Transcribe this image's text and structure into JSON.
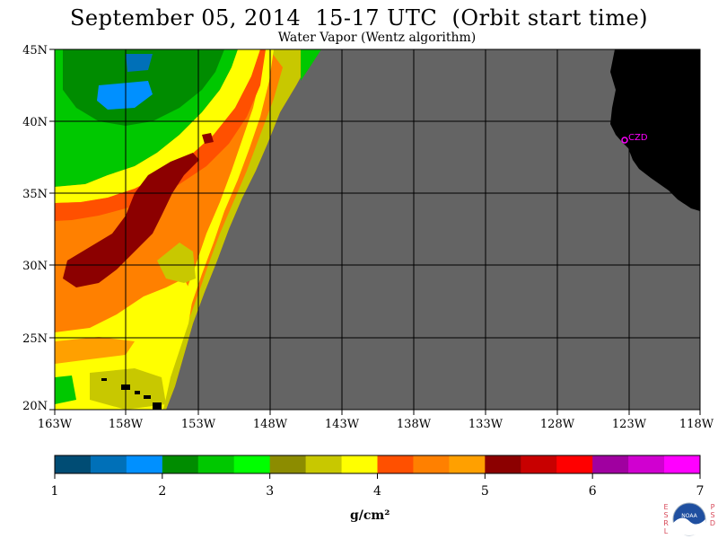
{
  "title": "September 05, 2014  15-17 UTC  (Orbit start time)",
  "subtitle": "Water Vapor (Wentz algorithm)",
  "map": {
    "lat_labels": [
      "45N",
      "40N",
      "35N",
      "30N",
      "25N",
      "20N"
    ],
    "lon_labels": [
      "163W",
      "158W",
      "153W",
      "148W",
      "143W",
      "138W",
      "133W",
      "128W",
      "123W",
      "118W"
    ],
    "station_label": "CZD",
    "no_data_color": "#646464",
    "land_color": "#000000",
    "station_color": "#ff00ff"
  },
  "colorbar": {
    "colors": [
      "#004c74",
      "#0070b8",
      "#0090ff",
      "#008c00",
      "#00c800",
      "#00ff00",
      "#8c8c00",
      "#c8c800",
      "#ffff00",
      "#ff5000",
      "#ff8000",
      "#ffa000",
      "#8c0000",
      "#c80000",
      "#ff0000",
      "#a000a0",
      "#d000d0",
      "#ff00ff"
    ],
    "ticks": [
      "1",
      "2",
      "3",
      "4",
      "5",
      "6",
      "7"
    ],
    "units": "g/cm²"
  },
  "logo": {
    "left_letters": "ESRL",
    "right_letters": "PSD",
    "text": "NOAA"
  }
}
